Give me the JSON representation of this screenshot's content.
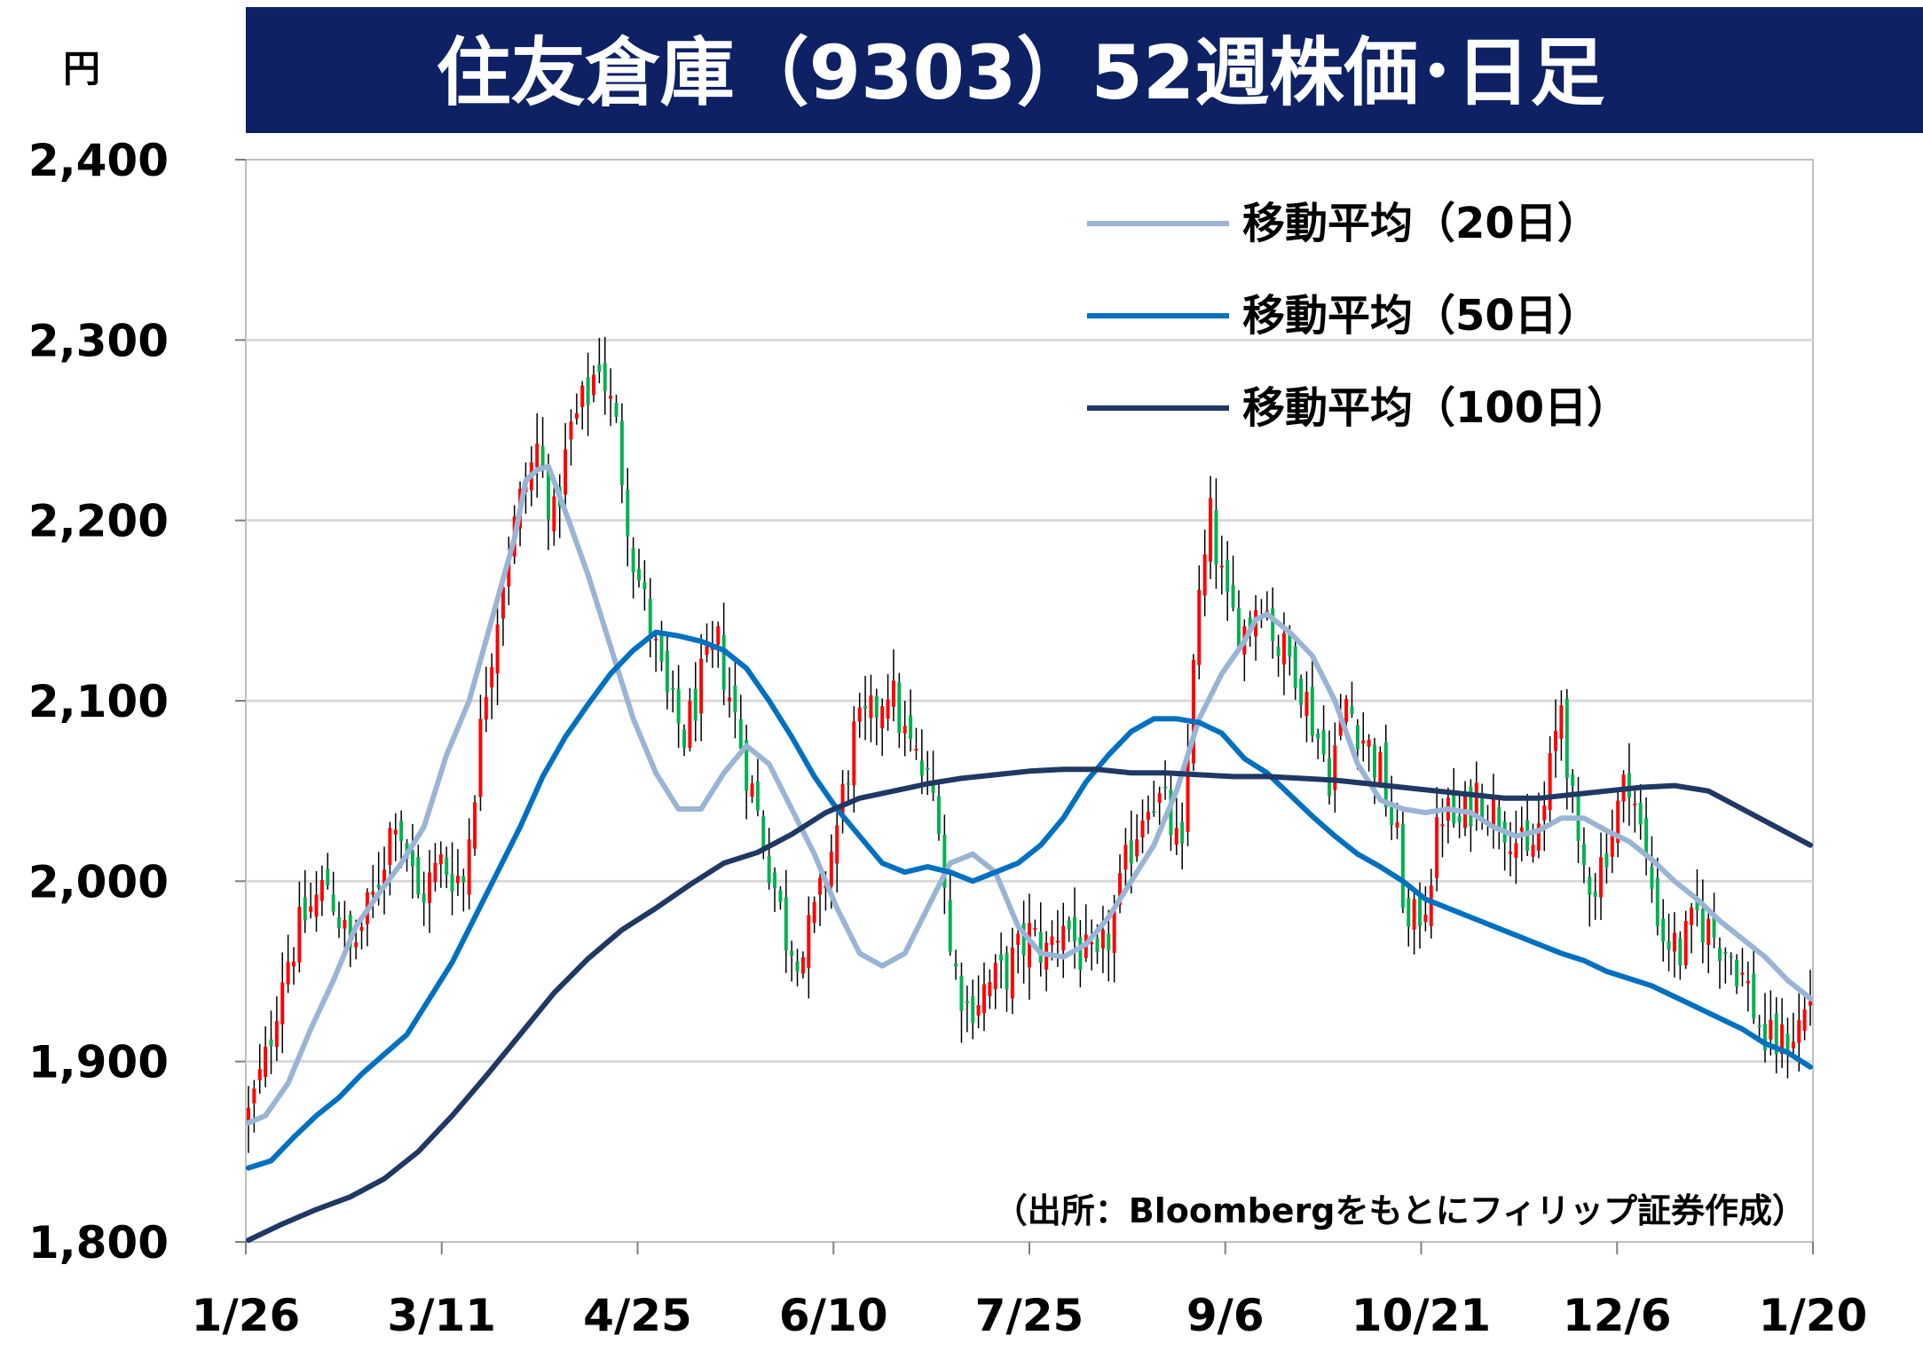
{
  "chart_data": {
    "type": "candlestick",
    "title": "住友倉庫（9303）52週株価･日足",
    "unit_label": "円",
    "source": "（出所：Bloombergをもとにフィリップ証券作成）",
    "ylim": [
      1800,
      2400
    ],
    "y_ticks": [
      "1,800",
      "1,900",
      "2,000",
      "2,100",
      "2,200",
      "2,300",
      "2,400"
    ],
    "y_tick_values": [
      1800,
      1900,
      2000,
      2100,
      2200,
      2300,
      2400
    ],
    "x_ticks": [
      "1/26",
      "3/11",
      "4/25",
      "6/10",
      "7/25",
      "9/6",
      "10/21",
      "12/6",
      "1/20"
    ],
    "grid": true,
    "legend_position": "top-right",
    "up_color": "#ff0000",
    "down_color": "#00b050",
    "close_anchors": [
      [
        0,
        1870
      ],
      [
        3,
        1900
      ],
      [
        6,
        1950
      ],
      [
        10,
        1980
      ],
      [
        14,
        2000
      ],
      [
        18,
        1960
      ],
      [
        22,
        1990
      ],
      [
        26,
        2040
      ],
      [
        30,
        1990
      ],
      [
        34,
        2010
      ],
      [
        38,
        2000
      ],
      [
        42,
        2110
      ],
      [
        45,
        2170
      ],
      [
        48,
        2210
      ],
      [
        51,
        2240
      ],
      [
        54,
        2200
      ],
      [
        57,
        2250
      ],
      [
        60,
        2270
      ],
      [
        62,
        2290
      ],
      [
        65,
        2250
      ],
      [
        68,
        2180
      ],
      [
        71,
        2140
      ],
      [
        74,
        2100
      ],
      [
        77,
        2080
      ],
      [
        80,
        2110
      ],
      [
        83,
        2130
      ],
      [
        86,
        2090
      ],
      [
        89,
        2050
      ],
      [
        92,
        2010
      ],
      [
        95,
        1970
      ],
      [
        98,
        1960
      ],
      [
        101,
        1990
      ],
      [
        104,
        2030
      ],
      [
        107,
        2080
      ],
      [
        110,
        2090
      ],
      [
        113,
        2110
      ],
      [
        116,
        2080
      ],
      [
        119,
        2060
      ],
      [
        122,
        2040
      ],
      [
        124,
        1960
      ],
      [
        127,
        1930
      ],
      [
        130,
        1940
      ],
      [
        134,
        1950
      ],
      [
        138,
        1970
      ],
      [
        141,
        1960
      ],
      [
        144,
        1980
      ],
      [
        147,
        1960
      ],
      [
        150,
        1950
      ],
      [
        153,
        1980
      ],
      [
        156,
        2020
      ],
      [
        159,
        2050
      ],
      [
        162,
        2040
      ],
      [
        165,
        2010
      ],
      [
        167,
        2130
      ],
      [
        170,
        2200
      ],
      [
        173,
        2150
      ],
      [
        176,
        2140
      ],
      [
        179,
        2160
      ],
      [
        182,
        2130
      ],
      [
        185,
        2120
      ],
      [
        188,
        2090
      ],
      [
        191,
        2060
      ],
      [
        194,
        2100
      ],
      [
        197,
        2080
      ],
      [
        200,
        2060
      ],
      [
        203,
        2020
      ],
      [
        205,
        1970
      ],
      [
        208,
        1990
      ],
      [
        211,
        2040
      ],
      [
        214,
        2030
      ],
      [
        217,
        2050
      ],
      [
        220,
        2040
      ],
      [
        223,
        2030
      ],
      [
        226,
        2010
      ],
      [
        229,
        2040
      ],
      [
        232,
        2100
      ],
      [
        235,
        2010
      ],
      [
        238,
        2000
      ],
      [
        241,
        2030
      ],
      [
        244,
        2060
      ],
      [
        247,
        2010
      ],
      [
        250,
        1970
      ],
      [
        253,
        1960
      ],
      [
        256,
        1980
      ],
      [
        259,
        1970
      ],
      [
        262,
        1960
      ],
      [
        265,
        1940
      ],
      [
        268,
        1910
      ],
      [
        271,
        1910
      ],
      [
        274,
        1920
      ],
      [
        276,
        1935
      ]
    ],
    "series": [
      {
        "name": "移動平均（20日）",
        "color": "#9ab4d6",
        "points": [
          [
            0,
            1866
          ],
          [
            3,
            1870
          ],
          [
            7,
            1888
          ],
          [
            11,
            1918
          ],
          [
            15,
            1945
          ],
          [
            19,
            1975
          ],
          [
            23,
            1993
          ],
          [
            27,
            2010
          ],
          [
            31,
            2030
          ],
          [
            35,
            2070
          ],
          [
            39,
            2100
          ],
          [
            43,
            2145
          ],
          [
            47,
            2190
          ],
          [
            49,
            2222
          ],
          [
            51,
            2228
          ],
          [
            53,
            2230
          ],
          [
            56,
            2205
          ],
          [
            60,
            2170
          ],
          [
            64,
            2130
          ],
          [
            68,
            2090
          ],
          [
            72,
            2060
          ],
          [
            76,
            2040
          ],
          [
            80,
            2040
          ],
          [
            84,
            2060
          ],
          [
            88,
            2075
          ],
          [
            92,
            2065
          ],
          [
            96,
            2040
          ],
          [
            100,
            2015
          ],
          [
            104,
            1985
          ],
          [
            108,
            1960
          ],
          [
            112,
            1953
          ],
          [
            116,
            1960
          ],
          [
            120,
            1985
          ],
          [
            124,
            2010
          ],
          [
            128,
            2015
          ],
          [
            132,
            2005
          ],
          [
            136,
            1975
          ],
          [
            140,
            1960
          ],
          [
            144,
            1958
          ],
          [
            148,
            1965
          ],
          [
            152,
            1980
          ],
          [
            156,
            2000
          ],
          [
            160,
            2020
          ],
          [
            164,
            2050
          ],
          [
            168,
            2090
          ],
          [
            172,
            2115
          ],
          [
            176,
            2133
          ],
          [
            178,
            2145
          ],
          [
            180,
            2148
          ],
          [
            184,
            2138
          ],
          [
            188,
            2125
          ],
          [
            192,
            2100
          ],
          [
            196,
            2065
          ],
          [
            200,
            2045
          ],
          [
            204,
            2040
          ],
          [
            208,
            2038
          ],
          [
            212,
            2040
          ],
          [
            216,
            2038
          ],
          [
            220,
            2030
          ],
          [
            224,
            2025
          ],
          [
            228,
            2028
          ],
          [
            232,
            2035
          ],
          [
            236,
            2035
          ],
          [
            240,
            2028
          ],
          [
            244,
            2022
          ],
          [
            248,
            2012
          ],
          [
            252,
            2000
          ],
          [
            256,
            1990
          ],
          [
            260,
            1978
          ],
          [
            264,
            1968
          ],
          [
            268,
            1958
          ],
          [
            272,
            1945
          ],
          [
            276,
            1935
          ]
        ]
      },
      {
        "name": "移動平均（50日）",
        "color": "#0070c0",
        "points": [
          [
            0,
            1841
          ],
          [
            4,
            1845
          ],
          [
            8,
            1858
          ],
          [
            12,
            1870
          ],
          [
            16,
            1880
          ],
          [
            20,
            1893
          ],
          [
            24,
            1904
          ],
          [
            28,
            1915
          ],
          [
            32,
            1935
          ],
          [
            36,
            1955
          ],
          [
            40,
            1980
          ],
          [
            44,
            2005
          ],
          [
            48,
            2030
          ],
          [
            52,
            2058
          ],
          [
            56,
            2080
          ],
          [
            60,
            2098
          ],
          [
            64,
            2115
          ],
          [
            68,
            2128
          ],
          [
            72,
            2138
          ],
          [
            76,
            2136
          ],
          [
            80,
            2133
          ],
          [
            84,
            2128
          ],
          [
            88,
            2118
          ],
          [
            92,
            2100
          ],
          [
            96,
            2080
          ],
          [
            100,
            2058
          ],
          [
            104,
            2040
          ],
          [
            108,
            2025
          ],
          [
            112,
            2010
          ],
          [
            116,
            2005
          ],
          [
            120,
            2008
          ],
          [
            124,
            2005
          ],
          [
            128,
            2000
          ],
          [
            132,
            2005
          ],
          [
            136,
            2010
          ],
          [
            140,
            2020
          ],
          [
            144,
            2035
          ],
          [
            148,
            2055
          ],
          [
            152,
            2070
          ],
          [
            156,
            2083
          ],
          [
            160,
            2090
          ],
          [
            164,
            2090
          ],
          [
            168,
            2088
          ],
          [
            172,
            2082
          ],
          [
            176,
            2068
          ],
          [
            180,
            2060
          ],
          [
            184,
            2048
          ],
          [
            188,
            2036
          ],
          [
            192,
            2025
          ],
          [
            196,
            2015
          ],
          [
            200,
            2008
          ],
          [
            204,
            2000
          ],
          [
            208,
            1990
          ],
          [
            212,
            1985
          ],
          [
            216,
            1980
          ],
          [
            220,
            1975
          ],
          [
            224,
            1970
          ],
          [
            228,
            1965
          ],
          [
            232,
            1960
          ],
          [
            236,
            1956
          ],
          [
            240,
            1950
          ],
          [
            244,
            1946
          ],
          [
            248,
            1942
          ],
          [
            252,
            1936
          ],
          [
            256,
            1930
          ],
          [
            260,
            1924
          ],
          [
            264,
            1918
          ],
          [
            268,
            1910
          ],
          [
            272,
            1905
          ],
          [
            276,
            1897
          ]
        ]
      },
      {
        "name": "移動平均（100日）",
        "color": "#1f3864",
        "points": [
          [
            0,
            1801
          ],
          [
            6,
            1810
          ],
          [
            12,
            1818
          ],
          [
            18,
            1825
          ],
          [
            24,
            1835
          ],
          [
            30,
            1850
          ],
          [
            36,
            1870
          ],
          [
            42,
            1892
          ],
          [
            48,
            1915
          ],
          [
            54,
            1938
          ],
          [
            60,
            1957
          ],
          [
            66,
            1973
          ],
          [
            72,
            1985
          ],
          [
            78,
            1998
          ],
          [
            84,
            2010
          ],
          [
            90,
            2016
          ],
          [
            96,
            2026
          ],
          [
            102,
            2038
          ],
          [
            108,
            2046
          ],
          [
            114,
            2050
          ],
          [
            120,
            2054
          ],
          [
            126,
            2057
          ],
          [
            132,
            2059
          ],
          [
            138,
            2061
          ],
          [
            144,
            2062
          ],
          [
            150,
            2062
          ],
          [
            156,
            2060
          ],
          [
            162,
            2060
          ],
          [
            168,
            2059
          ],
          [
            174,
            2058
          ],
          [
            180,
            2058
          ],
          [
            186,
            2057
          ],
          [
            192,
            2056
          ],
          [
            198,
            2054
          ],
          [
            204,
            2052
          ],
          [
            210,
            2050
          ],
          [
            216,
            2048
          ],
          [
            222,
            2046
          ],
          [
            228,
            2046
          ],
          [
            234,
            2048
          ],
          [
            240,
            2050
          ],
          [
            246,
            2052
          ],
          [
            252,
            2053
          ],
          [
            258,
            2050
          ],
          [
            264,
            2040
          ],
          [
            270,
            2030
          ],
          [
            276,
            2020
          ]
        ]
      }
    ]
  }
}
